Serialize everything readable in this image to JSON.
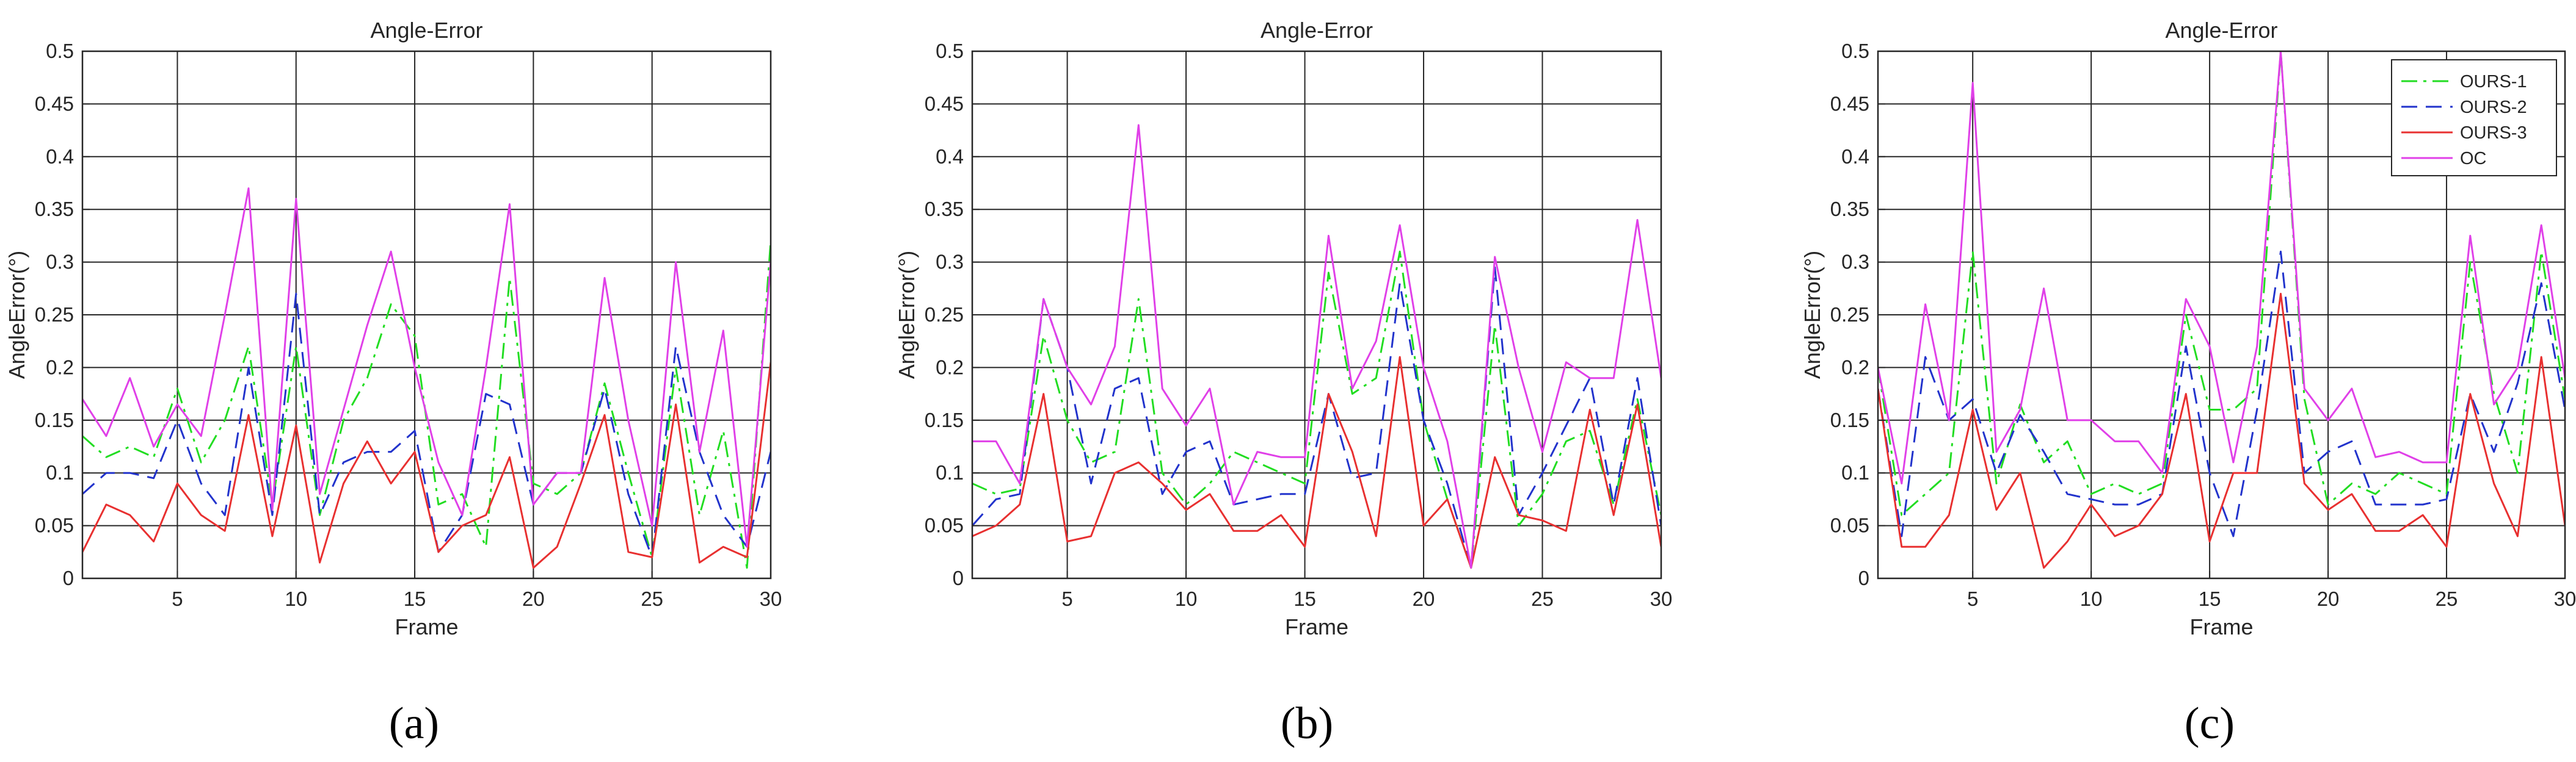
{
  "colors": {
    "OURS-1": "#22dd22",
    "OURS-2": "#2233cc",
    "OURS-3": "#e83030",
    "OC": "#e040e8"
  },
  "chart_data": [
    {
      "type": "line",
      "panel_label": "(a)",
      "title": "Angle-Error",
      "xlabel": "Frame",
      "ylabel": "AngleError(°)",
      "xlim": [
        1,
        30
      ],
      "ylim": [
        0,
        0.5
      ],
      "xticks": [
        5,
        10,
        15,
        20,
        25,
        30
      ],
      "yticks": [
        0,
        0.05,
        0.1,
        0.15,
        0.2,
        0.25,
        0.3,
        0.35,
        0.4,
        0.45,
        0.5
      ],
      "ytick_labels": [
        "0",
        "0.05",
        "0.1",
        "0.15",
        "0.2",
        "0.25",
        "0.3",
        "0.35",
        "0.4",
        "0.45",
        "0.5"
      ],
      "grid": true,
      "legend": null,
      "x": [
        1,
        2,
        3,
        4,
        5,
        6,
        7,
        8,
        9,
        10,
        11,
        12,
        13,
        14,
        15,
        16,
        17,
        18,
        19,
        20,
        21,
        22,
        23,
        24,
        25,
        26,
        27,
        28,
        29,
        30
      ],
      "series": [
        {
          "name": "OURS-1",
          "style": "dashdot",
          "values": [
            0.135,
            0.115,
            0.125,
            0.115,
            0.18,
            0.11,
            0.15,
            0.22,
            0.07,
            0.22,
            0.06,
            0.15,
            0.19,
            0.26,
            0.23,
            0.07,
            0.08,
            0.03,
            0.285,
            0.09,
            0.08,
            0.1,
            0.185,
            0.1,
            0.02,
            0.2,
            0.06,
            0.14,
            0.01,
            0.32
          ]
        },
        {
          "name": "OURS-2",
          "style": "dashed",
          "values": [
            0.08,
            0.1,
            0.1,
            0.095,
            0.15,
            0.09,
            0.06,
            0.2,
            0.06,
            0.27,
            0.06,
            0.11,
            0.12,
            0.12,
            0.14,
            0.025,
            0.06,
            0.175,
            0.165,
            0.07,
            0.1,
            0.1,
            0.18,
            0.08,
            0.02,
            0.22,
            0.12,
            0.06,
            0.03,
            0.12
          ]
        },
        {
          "name": "OURS-3",
          "style": "solid",
          "values": [
            0.025,
            0.07,
            0.06,
            0.035,
            0.09,
            0.06,
            0.045,
            0.155,
            0.04,
            0.145,
            0.015,
            0.09,
            0.13,
            0.09,
            0.12,
            0.025,
            0.05,
            0.06,
            0.115,
            0.01,
            0.03,
            0.09,
            0.155,
            0.025,
            0.02,
            0.165,
            0.015,
            0.03,
            0.02,
            0.205
          ]
        },
        {
          "name": "OC",
          "style": "solid",
          "values": [
            0.17,
            0.135,
            0.19,
            0.125,
            0.165,
            0.135,
            0.25,
            0.37,
            0.065,
            0.36,
            0.08,
            0.16,
            0.24,
            0.31,
            0.2,
            0.11,
            0.06,
            0.2,
            0.355,
            0.07,
            0.1,
            0.1,
            0.285,
            0.15,
            0.05,
            0.3,
            0.12,
            0.235,
            0.03,
            0.3
          ]
        }
      ]
    },
    {
      "type": "line",
      "panel_label": "(b)",
      "title": "Angle-Error",
      "xlabel": "Frame",
      "ylabel": "AngleError(°)",
      "xlim": [
        1,
        30
      ],
      "ylim": [
        0,
        0.5
      ],
      "xticks": [
        5,
        10,
        15,
        20,
        25,
        30
      ],
      "yticks": [
        0,
        0.05,
        0.1,
        0.15,
        0.2,
        0.25,
        0.3,
        0.35,
        0.4,
        0.45,
        0.5
      ],
      "ytick_labels": [
        "0",
        "0.05",
        "0.1",
        "0.15",
        "0.2",
        "0.25",
        "0.3",
        "0.35",
        "0.4",
        "0.45",
        "0.5"
      ],
      "grid": true,
      "legend": null,
      "x": [
        1,
        2,
        3,
        4,
        5,
        6,
        7,
        8,
        9,
        10,
        11,
        12,
        13,
        14,
        15,
        16,
        17,
        18,
        19,
        20,
        21,
        22,
        23,
        24,
        25,
        26,
        27,
        28,
        29,
        30
      ],
      "series": [
        {
          "name": "OURS-1",
          "style": "dashdot",
          "values": [
            0.09,
            0.08,
            0.085,
            0.23,
            0.15,
            0.11,
            0.12,
            0.265,
            0.1,
            0.07,
            0.09,
            0.12,
            0.11,
            0.1,
            0.09,
            0.29,
            0.175,
            0.19,
            0.31,
            0.15,
            0.075,
            0.01,
            0.24,
            0.05,
            0.08,
            0.13,
            0.14,
            0.07,
            0.17,
            0.06
          ]
        },
        {
          "name": "OURS-2",
          "style": "dashed",
          "values": [
            0.05,
            0.075,
            0.08,
            0.265,
            0.2,
            0.09,
            0.18,
            0.19,
            0.08,
            0.12,
            0.13,
            0.07,
            0.075,
            0.08,
            0.08,
            0.175,
            0.095,
            0.1,
            0.28,
            0.15,
            0.09,
            0.01,
            0.295,
            0.06,
            0.1,
            0.145,
            0.19,
            0.07,
            0.19,
            0.05
          ]
        },
        {
          "name": "OURS-3",
          "style": "solid",
          "values": [
            0.04,
            0.05,
            0.07,
            0.175,
            0.035,
            0.04,
            0.1,
            0.11,
            0.09,
            0.065,
            0.08,
            0.045,
            0.045,
            0.06,
            0.03,
            0.175,
            0.12,
            0.04,
            0.21,
            0.05,
            0.075,
            0.01,
            0.115,
            0.06,
            0.055,
            0.045,
            0.16,
            0.06,
            0.165,
            0.03
          ]
        },
        {
          "name": "OC",
          "style": "solid",
          "values": [
            0.13,
            0.13,
            0.09,
            0.265,
            0.2,
            0.165,
            0.22,
            0.43,
            0.18,
            0.145,
            0.18,
            0.07,
            0.12,
            0.115,
            0.115,
            0.325,
            0.18,
            0.225,
            0.335,
            0.2,
            0.13,
            0.01,
            0.305,
            0.2,
            0.12,
            0.205,
            0.19,
            0.19,
            0.34,
            0.19
          ]
        }
      ]
    },
    {
      "type": "line",
      "panel_label": "(c)",
      "title": "Angle-Error",
      "xlabel": "Frame",
      "ylabel": "AngleError(°)",
      "xlim": [
        1,
        30
      ],
      "ylim": [
        0,
        0.5
      ],
      "xticks": [
        5,
        10,
        15,
        20,
        25,
        30
      ],
      "yticks": [
        0,
        0.05,
        0.1,
        0.15,
        0.2,
        0.25,
        0.3,
        0.35,
        0.4,
        0.45,
        0.5
      ],
      "ytick_labels": [
        "0",
        "0.05",
        "0.1",
        "0.15",
        "0.2",
        "0.25",
        "0.3",
        "0.35",
        "0.4",
        "0.45",
        "0.5"
      ],
      "grid": true,
      "legend": "top-right",
      "x": [
        1,
        2,
        3,
        4,
        5,
        6,
        7,
        8,
        9,
        10,
        11,
        12,
        13,
        14,
        15,
        16,
        17,
        18,
        19,
        20,
        21,
        22,
        23,
        24,
        25,
        26,
        27,
        28,
        29,
        30
      ],
      "series": [
        {
          "name": "OURS-1",
          "style": "dashdot",
          "values": [
            0.2,
            0.06,
            0.08,
            0.1,
            0.31,
            0.09,
            0.165,
            0.11,
            0.13,
            0.08,
            0.09,
            0.08,
            0.09,
            0.25,
            0.16,
            0.16,
            0.18,
            0.5,
            0.17,
            0.07,
            0.09,
            0.08,
            0.1,
            0.09,
            0.08,
            0.3,
            0.175,
            0.1,
            0.31,
            0.17
          ]
        },
        {
          "name": "OURS-2",
          "style": "dashed",
          "values": [
            0.18,
            0.04,
            0.21,
            0.15,
            0.17,
            0.1,
            0.155,
            0.12,
            0.08,
            0.075,
            0.07,
            0.07,
            0.08,
            0.22,
            0.1,
            0.04,
            0.16,
            0.31,
            0.1,
            0.12,
            0.13,
            0.07,
            0.07,
            0.07,
            0.075,
            0.175,
            0.12,
            0.185,
            0.28,
            0.16
          ]
        },
        {
          "name": "OURS-3",
          "style": "solid",
          "values": [
            0.18,
            0.03,
            0.03,
            0.06,
            0.16,
            0.065,
            0.1,
            0.01,
            0.035,
            0.07,
            0.04,
            0.05,
            0.08,
            0.175,
            0.035,
            0.1,
            0.1,
            0.27,
            0.09,
            0.065,
            0.08,
            0.045,
            0.045,
            0.06,
            0.03,
            0.175,
            0.09,
            0.04,
            0.21,
            0.05
          ]
        },
        {
          "name": "OC",
          "style": "solid",
          "values": [
            0.2,
            0.09,
            0.26,
            0.15,
            0.47,
            0.12,
            0.16,
            0.275,
            0.15,
            0.15,
            0.13,
            0.13,
            0.1,
            0.265,
            0.22,
            0.11,
            0.22,
            0.5,
            0.18,
            0.15,
            0.18,
            0.115,
            0.12,
            0.11,
            0.11,
            0.325,
            0.165,
            0.2,
            0.335,
            0.19
          ]
        }
      ]
    }
  ]
}
